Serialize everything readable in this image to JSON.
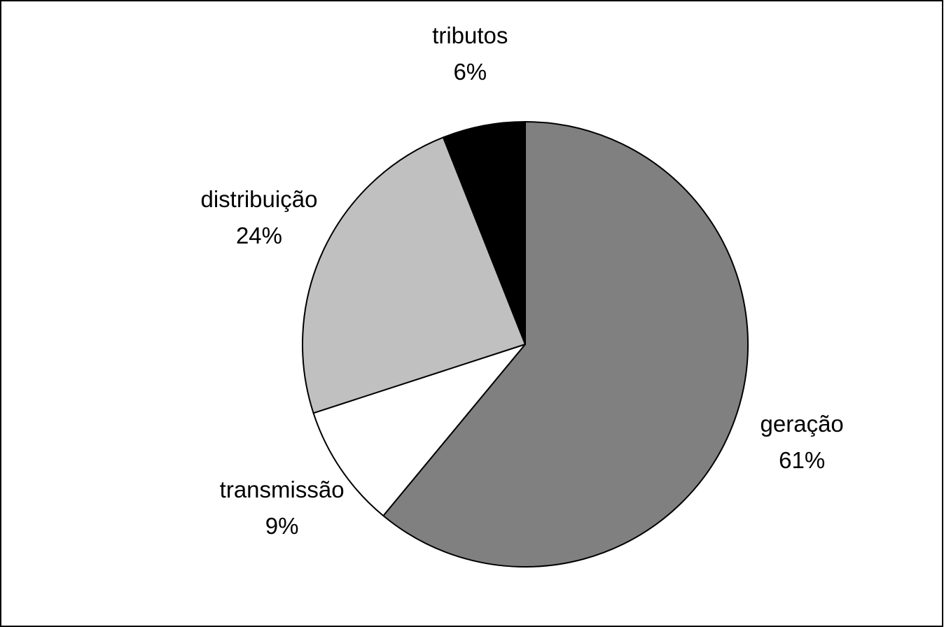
{
  "chart_data": {
    "type": "pie",
    "categories": [
      "geração",
      "transmissão",
      "distribuição",
      "tributos"
    ],
    "values": [
      61,
      9,
      24,
      6
    ],
    "value_labels": [
      "61%",
      "9%",
      "24%",
      "6%"
    ],
    "colors": [
      "#808080",
      "#ffffff",
      "#c0c0c0",
      "#000000"
    ]
  }
}
